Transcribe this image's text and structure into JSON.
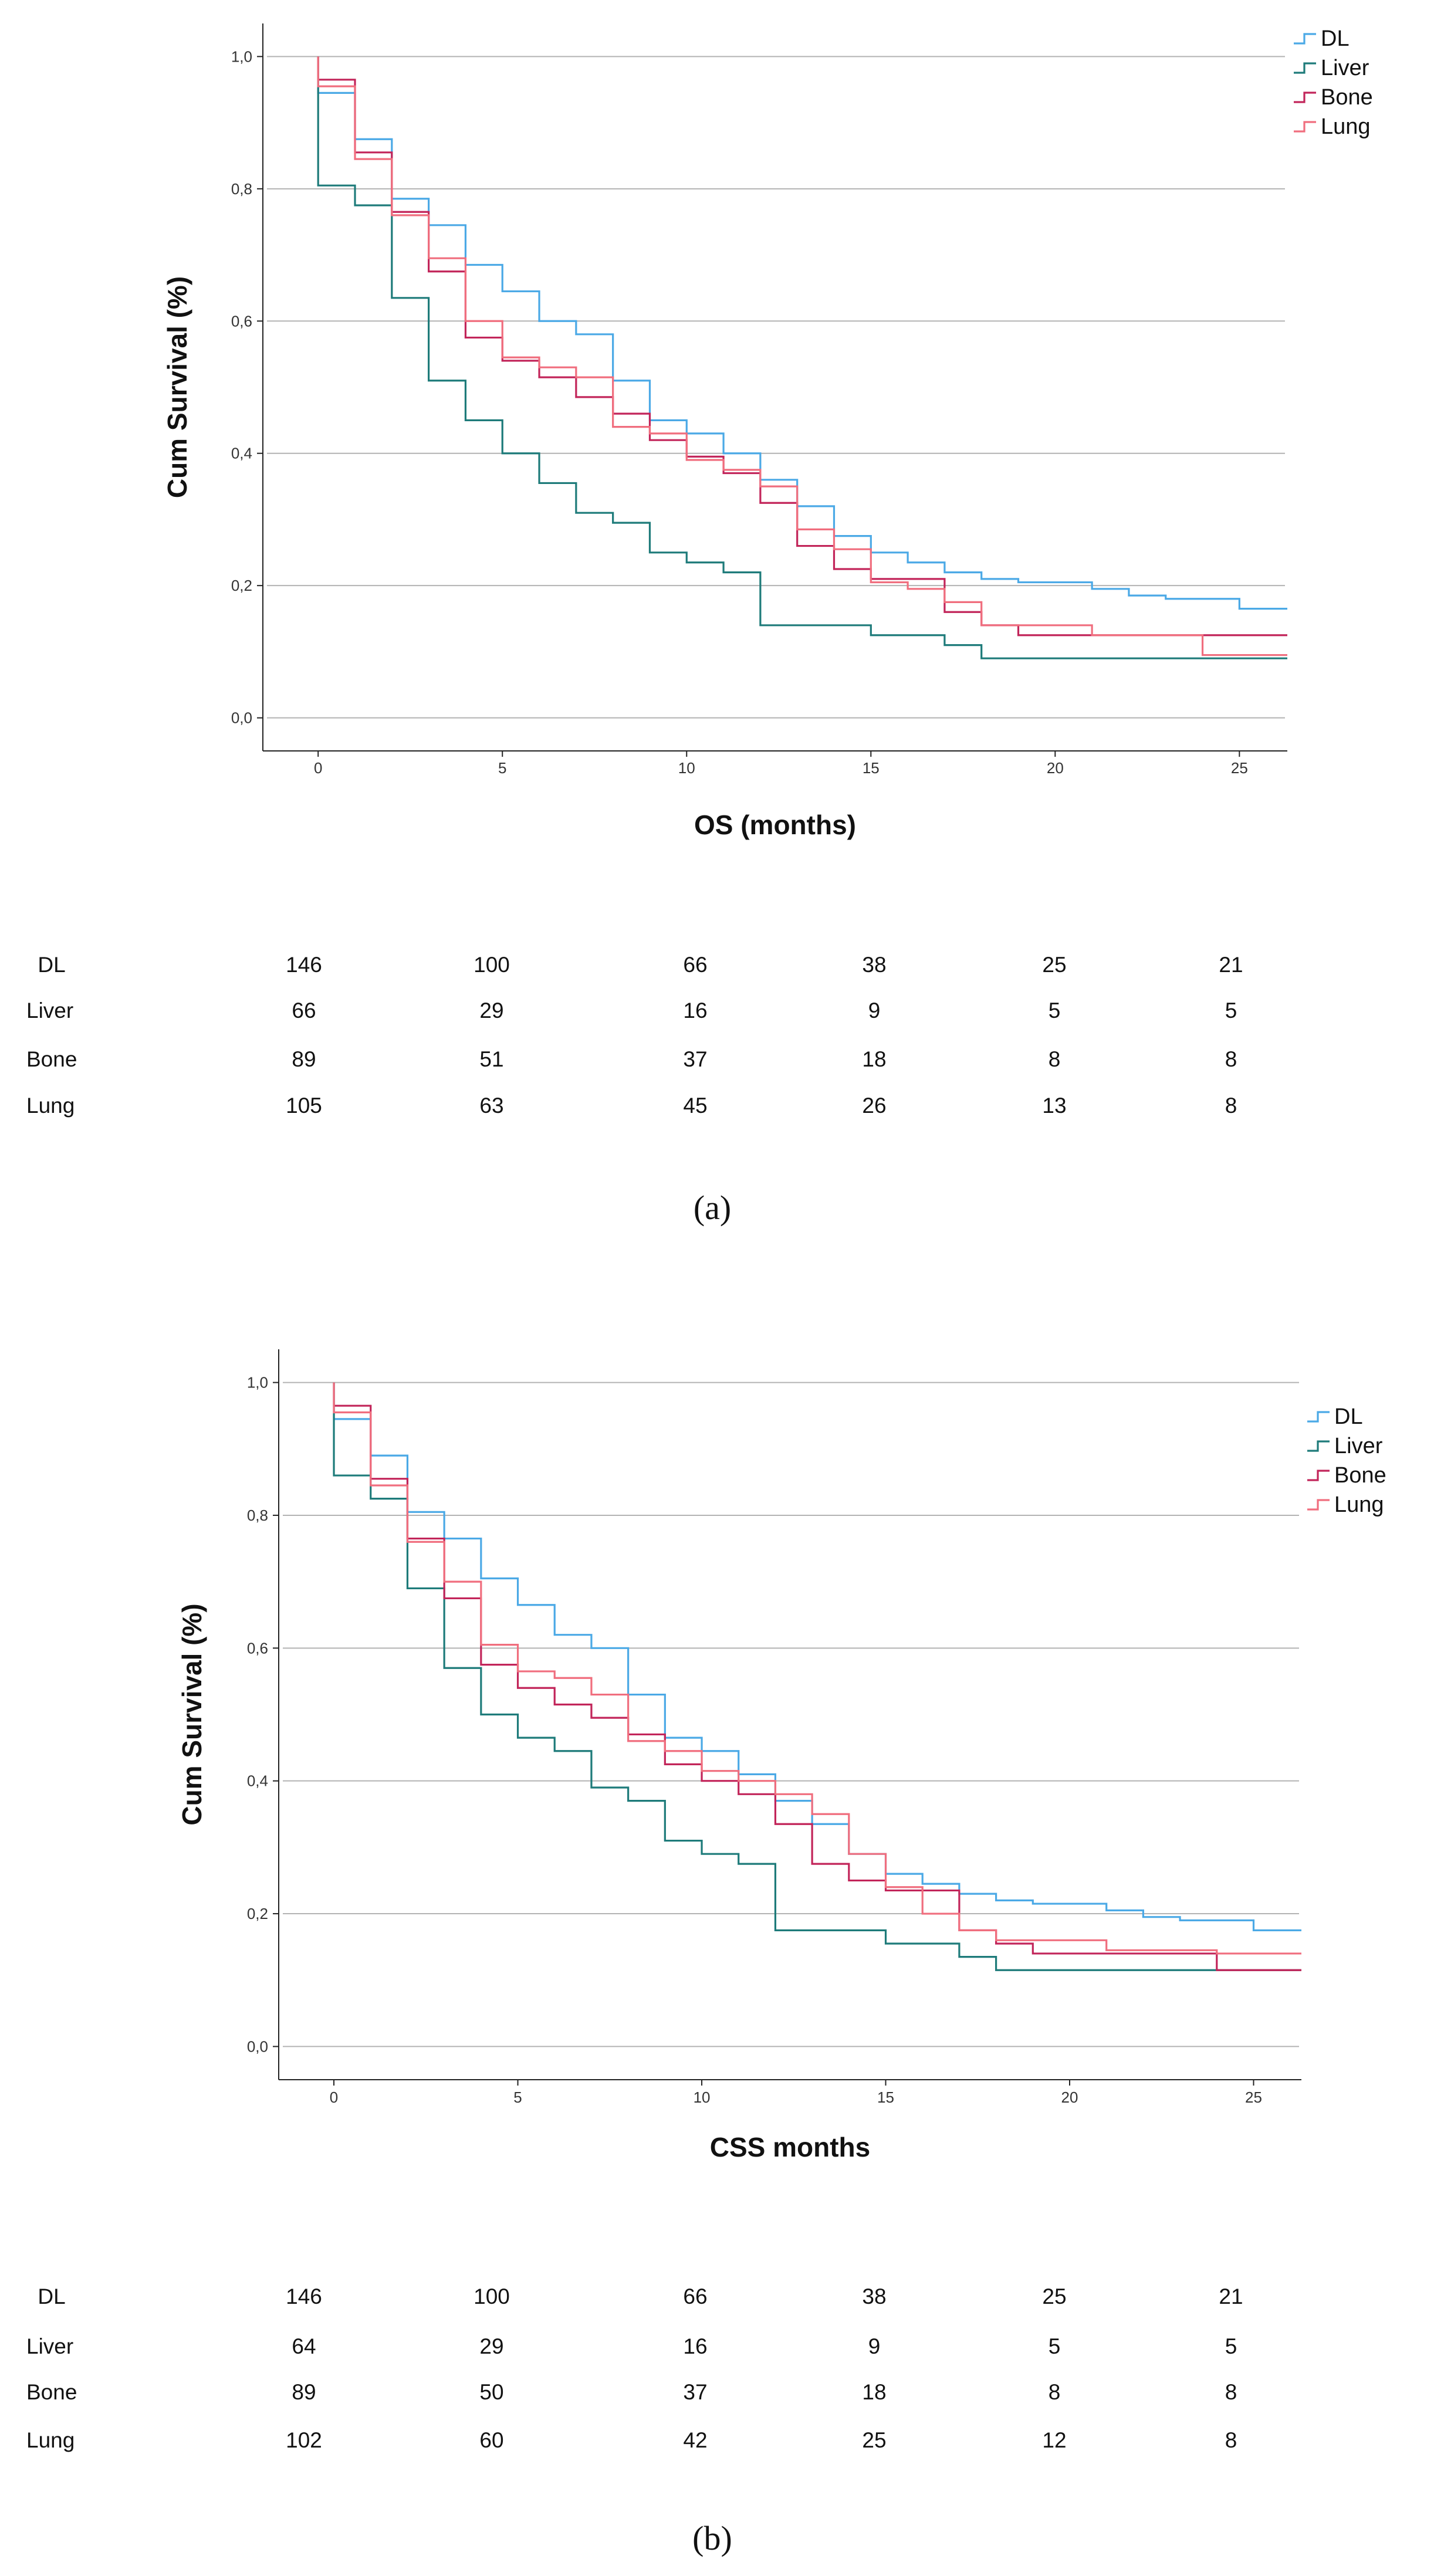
{
  "chart_data": [
    {
      "type": "line",
      "subtype": "kaplan-meier step",
      "panel_label": "(a)",
      "xlabel": "OS (months)",
      "ylabel": "Cum Survival (%)",
      "xlim": [
        -1.5,
        26.3
      ],
      "ylim": [
        -0.05,
        1.05
      ],
      "x_ticks": [
        "0",
        "5",
        "10",
        "15",
        "20",
        "25"
      ],
      "x_tick_values": [
        0,
        5,
        10,
        15,
        20,
        25
      ],
      "y_ticks": [
        "0,0",
        "0,2",
        "0,4",
        "0,6",
        "0,8",
        "1,0"
      ],
      "y_tick_values": [
        0,
        0.2,
        0.4,
        0.6,
        0.8,
        1.0
      ],
      "grid": "horizontal",
      "legend_position": "top-right",
      "series": [
        {
          "name": "DL",
          "color": "#4ba9e6",
          "x": [
            0,
            1,
            2,
            3,
            4,
            5,
            6,
            7,
            8,
            9,
            10,
            11,
            12,
            13,
            14,
            15,
            16,
            17,
            18,
            19,
            21,
            22,
            23,
            25,
            26.3
          ],
          "y": [
            0.945,
            0.875,
            0.785,
            0.745,
            0.685,
            0.645,
            0.6,
            0.58,
            0.51,
            0.45,
            0.43,
            0.4,
            0.36,
            0.32,
            0.275,
            0.25,
            0.235,
            0.22,
            0.21,
            0.205,
            0.195,
            0.185,
            0.18,
            0.165,
            0.165
          ]
        },
        {
          "name": "Liver",
          "color": "#1e7b7a",
          "x": [
            0,
            1,
            2,
            3,
            4,
            5,
            6,
            7,
            8,
            9,
            10,
            11,
            12,
            15,
            17,
            18,
            26.3
          ],
          "y": [
            0.805,
            0.775,
            0.635,
            0.51,
            0.45,
            0.4,
            0.355,
            0.31,
            0.295,
            0.25,
            0.235,
            0.22,
            0.14,
            0.125,
            0.11,
            0.09,
            0.09
          ]
        },
        {
          "name": "Bone",
          "color": "#c2255a",
          "x": [
            0,
            1,
            2,
            3,
            4,
            5,
            6,
            7,
            8,
            9,
            10,
            11,
            12,
            13,
            14,
            15,
            17,
            18,
            19,
            21,
            26.3
          ],
          "y": [
            0.965,
            0.855,
            0.765,
            0.675,
            0.575,
            0.54,
            0.515,
            0.485,
            0.46,
            0.42,
            0.395,
            0.37,
            0.325,
            0.26,
            0.225,
            0.21,
            0.16,
            0.14,
            0.125,
            0.125,
            0.125
          ]
        },
        {
          "name": "Lung",
          "color": "#f06e7e",
          "x": [
            0,
            1,
            2,
            3,
            4,
            5,
            6,
            7,
            8,
            9,
            10,
            11,
            12,
            13,
            14,
            15,
            16,
            17,
            18,
            21,
            24,
            26.3
          ],
          "y": [
            0.955,
            0.845,
            0.76,
            0.695,
            0.6,
            0.545,
            0.53,
            0.515,
            0.44,
            0.43,
            0.39,
            0.375,
            0.35,
            0.285,
            0.255,
            0.205,
            0.195,
            0.175,
            0.14,
            0.125,
            0.095,
            0.095
          ]
        }
      ],
      "risk_table": {
        "rows": [
          {
            "label": "DL",
            "values": [
              "146",
              "100",
              "66",
              "38",
              "25",
              "21"
            ]
          },
          {
            "label": "Liver",
            "values": [
              "66",
              "29",
              "16",
              "9",
              "5",
              "5"
            ]
          },
          {
            "label": "Bone",
            "values": [
              "89",
              "51",
              "37",
              "18",
              "8",
              "8"
            ]
          },
          {
            "label": "Lung",
            "values": [
              "105",
              "63",
              "45",
              "26",
              "13",
              "8"
            ]
          }
        ]
      }
    },
    {
      "type": "line",
      "subtype": "kaplan-meier step",
      "panel_label": "(b)",
      "xlabel": "CSS months",
      "ylabel": "Cum Survival (%)",
      "xlim": [
        -1.5,
        26.3
      ],
      "ylim": [
        -0.05,
        1.05
      ],
      "x_ticks": [
        "0",
        "5",
        "10",
        "15",
        "20",
        "25"
      ],
      "x_tick_values": [
        0,
        5,
        10,
        15,
        20,
        25
      ],
      "y_ticks": [
        "0,0",
        "0,2",
        "0,4",
        "0,6",
        "0,8",
        "1,0"
      ],
      "y_tick_values": [
        0,
        0.2,
        0.4,
        0.6,
        0.8,
        1.0
      ],
      "grid": "horizontal",
      "legend_position": "top-right",
      "series": [
        {
          "name": "DL",
          "color": "#4ba9e6",
          "x": [
            0,
            1,
            2,
            3,
            4,
            5,
            6,
            7,
            8,
            9,
            10,
            11,
            12,
            13,
            14,
            15,
            16,
            17,
            18,
            19,
            21,
            22,
            23,
            25,
            26.3
          ],
          "y": [
            0.945,
            0.89,
            0.805,
            0.765,
            0.705,
            0.665,
            0.62,
            0.6,
            0.53,
            0.465,
            0.445,
            0.41,
            0.37,
            0.335,
            0.29,
            0.26,
            0.245,
            0.23,
            0.22,
            0.215,
            0.205,
            0.195,
            0.19,
            0.175,
            0.175
          ]
        },
        {
          "name": "Liver",
          "color": "#1e7b7a",
          "x": [
            0,
            1,
            2,
            3,
            4,
            5,
            6,
            7,
            8,
            9,
            10,
            11,
            12,
            15,
            17,
            18,
            26.3
          ],
          "y": [
            0.86,
            0.825,
            0.69,
            0.57,
            0.5,
            0.465,
            0.445,
            0.39,
            0.37,
            0.31,
            0.29,
            0.275,
            0.175,
            0.155,
            0.135,
            0.115,
            0.115
          ]
        },
        {
          "name": "Bone",
          "color": "#c2255a",
          "x": [
            0,
            1,
            2,
            3,
            4,
            5,
            6,
            7,
            8,
            9,
            10,
            11,
            12,
            13,
            14,
            15,
            17,
            18,
            19,
            21,
            24,
            26.3
          ],
          "y": [
            0.965,
            0.855,
            0.765,
            0.675,
            0.575,
            0.54,
            0.515,
            0.495,
            0.47,
            0.425,
            0.4,
            0.38,
            0.335,
            0.275,
            0.25,
            0.235,
            0.175,
            0.155,
            0.14,
            0.14,
            0.115,
            0.115
          ]
        },
        {
          "name": "Lung",
          "color": "#f06e7e",
          "x": [
            0,
            1,
            2,
            3,
            4,
            5,
            6,
            7,
            8,
            9,
            10,
            11,
            12,
            13,
            14,
            15,
            16,
            17,
            18,
            21,
            24,
            26.3
          ],
          "y": [
            0.955,
            0.845,
            0.76,
            0.7,
            0.605,
            0.565,
            0.555,
            0.53,
            0.46,
            0.445,
            0.415,
            0.4,
            0.38,
            0.35,
            0.29,
            0.24,
            0.2,
            0.175,
            0.16,
            0.145,
            0.14,
            0.14
          ]
        }
      ],
      "risk_table": {
        "rows": [
          {
            "label": "DL",
            "values": [
              "146",
              "100",
              "66",
              "38",
              "25",
              "21"
            ]
          },
          {
            "label": "Liver",
            "values": [
              "64",
              "29",
              "16",
              "9",
              "5",
              "5"
            ]
          },
          {
            "label": "Bone",
            "values": [
              "89",
              "50",
              "37",
              "18",
              "8",
              "8"
            ]
          },
          {
            "label": "Lung",
            "values": [
              "102",
              "60",
              "42",
              "25",
              "12",
              "8"
            ]
          }
        ]
      }
    }
  ]
}
